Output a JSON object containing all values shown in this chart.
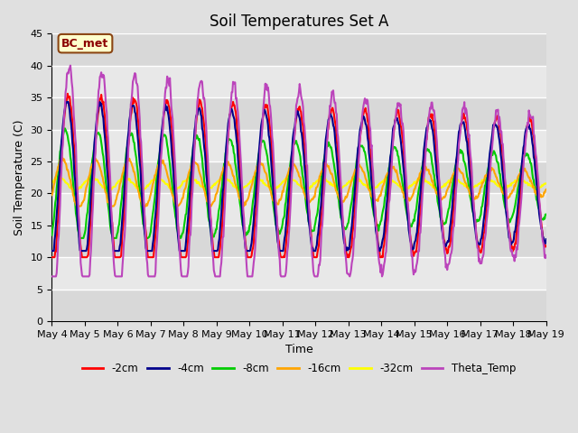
{
  "title": "Soil Temperatures Set A",
  "xlabel": "Time",
  "ylabel": "Soil Temperature (C)",
  "ylim": [
    0,
    45
  ],
  "yticks": [
    0,
    5,
    10,
    15,
    20,
    25,
    30,
    35,
    40,
    45
  ],
  "date_labels": [
    "May 4",
    "May 5",
    "May 6",
    "May 7",
    "May 8",
    "May 9",
    "May 10",
    "May 11",
    "May 12",
    "May 13",
    "May 14",
    "May 15",
    "May 16",
    "May 17",
    "May 18",
    "May 19"
  ],
  "annotation_text": "BC_met",
  "annotation_facecolor": "#FFFFCC",
  "annotation_edgecolor": "#8B4513",
  "annotation_textcolor": "#8B0000",
  "line_colors": {
    "2cm": "#FF0000",
    "4cm": "#00008B",
    "8cm": "#00CC00",
    "16cm": "#FFA500",
    "32cm": "#FFFF00",
    "theta": "#BB44BB"
  },
  "line_width": 1.5,
  "legend_labels": [
    "-2cm",
    "-4cm",
    "-8cm",
    "-16cm",
    "-32cm",
    "Theta_Temp"
  ],
  "fig_background": "#E0E0E0",
  "plot_background": "#DCDCDC",
  "grid_color": "#FFFFFF",
  "band_colors": [
    "#D8D8D8",
    "#E8E8E8"
  ],
  "title_fontsize": 12,
  "axis_fontsize": 9,
  "tick_fontsize": 8
}
